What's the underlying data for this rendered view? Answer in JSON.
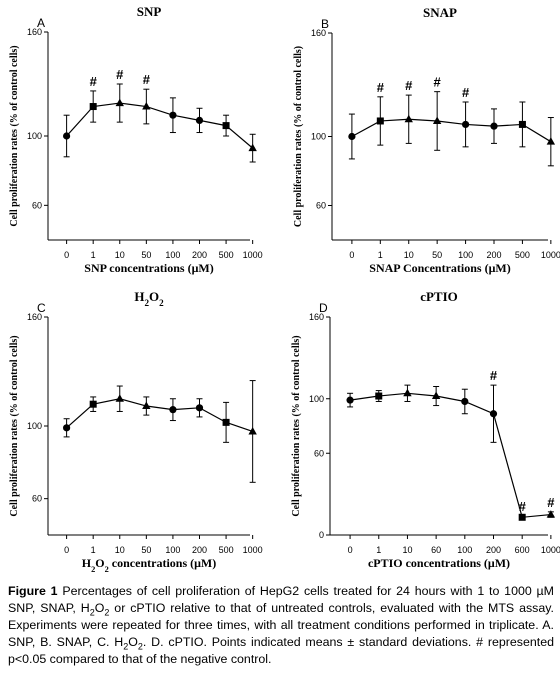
{
  "chart_data": [
    {
      "type": "line",
      "panel": "A",
      "title": "SNP",
      "xlabel": "SNP concentrations (μM)",
      "ylabel": "Cell proliferation rates (% of control cells)",
      "categories": [
        "0",
        "1",
        "10",
        "50",
        "100",
        "200",
        "500",
        "1000"
      ],
      "yticks": [
        "60",
        "100",
        "160"
      ],
      "ylim": [
        40,
        160
      ],
      "series": [
        {
          "values": [
            100,
            117,
            119,
            117,
            112,
            109,
            106,
            93
          ],
          "errors": [
            12,
            9,
            11,
            10,
            10,
            7,
            6,
            8
          ],
          "markers": [
            "circle",
            "square",
            "triangle",
            "triangle",
            "circle",
            "circle",
            "square",
            "triangle"
          ]
        }
      ],
      "significant": [
        false,
        true,
        true,
        true,
        false,
        false,
        false,
        false
      ],
      "sig_mark": "#"
    },
    {
      "type": "line",
      "panel": "B",
      "title": "SNAP",
      "xlabel": "SNAP Concentrations (μM)",
      "ylabel": "Cell proliferation rates (% of control cells)",
      "categories": [
        "0",
        "1",
        "10",
        "50",
        "100",
        "200",
        "500",
        "1000"
      ],
      "yticks": [
        "60",
        "100",
        "160"
      ],
      "ylim": [
        40,
        160
      ],
      "series": [
        {
          "values": [
            100,
            109,
            110,
            109,
            107,
            106,
            107,
            97
          ],
          "errors": [
            13,
            14,
            14,
            17,
            13,
            10,
            13,
            14
          ],
          "markers": [
            "circle",
            "square",
            "triangle",
            "triangle",
            "circle",
            "circle",
            "square",
            "triangle"
          ]
        }
      ],
      "significant": [
        false,
        true,
        true,
        true,
        true,
        false,
        false,
        false
      ],
      "sig_mark": "#"
    },
    {
      "type": "line",
      "panel": "C",
      "title": "H2O2",
      "xlabel": "H2O2 concentrations (μM)",
      "ylabel": "Cell proliferation rates (% of control cells)",
      "categories": [
        "0",
        "1",
        "10",
        "50",
        "100",
        "200",
        "500",
        "1000"
      ],
      "yticks": [
        "60",
        "100",
        "160"
      ],
      "ylim": [
        40,
        160
      ],
      "series": [
        {
          "values": [
            99,
            112,
            115,
            111,
            109,
            110,
            102,
            97
          ],
          "errors": [
            5,
            4,
            7,
            5,
            6,
            5,
            11,
            28
          ],
          "markers": [
            "circle",
            "square",
            "triangle",
            "triangle",
            "circle",
            "circle",
            "square",
            "triangle"
          ]
        }
      ],
      "significant": [
        false,
        false,
        false,
        false,
        false,
        false,
        false,
        false
      ],
      "sig_mark": "#"
    },
    {
      "type": "line",
      "panel": "D",
      "title": "cPTIO",
      "xlabel": "cPTIO concentrations (μM)",
      "ylabel": "Cell proliferation rates (% of control cells)",
      "categories": [
        "0",
        "1",
        "10",
        "60",
        "100",
        "200",
        "600",
        "1000"
      ],
      "yticks": [
        "0",
        "60",
        "100",
        "160"
      ],
      "ylim": [
        0,
        160
      ],
      "series": [
        {
          "values": [
            99,
            102,
            104,
            102,
            98,
            89,
            13,
            15
          ],
          "errors": [
            5,
            4,
            6,
            7,
            9,
            21,
            1,
            2
          ],
          "markers": [
            "circle",
            "square",
            "triangle",
            "triangle",
            "circle",
            "circle",
            "square",
            "triangle"
          ]
        }
      ],
      "significant": [
        false,
        false,
        false,
        false,
        false,
        true,
        true,
        true
      ],
      "sig_mark": "#"
    }
  ],
  "caption": {
    "label": "Figure 1",
    "text_1": " Percentages of cell proliferation of HepG2 cells treated for 24 hours with 1 to 1000 µM SNP, SNAP, H",
    "sub_1": "2",
    "text_2": "O",
    "sub_2": "2",
    "text_3": " or cPTIO relative to that of untreated controls, evaluated with the MTS assay. Experiments were repeated for three times, with all treatment conditions performed in triplicate. A. SNP, B. SNAP, C. H",
    "sub_3": "2",
    "text_4": "O",
    "sub_4": "2",
    "text_5": ". D. cPTIO. Points indicated means ± standard deviations. # represented p<0.05 compared to that of the negative control."
  }
}
